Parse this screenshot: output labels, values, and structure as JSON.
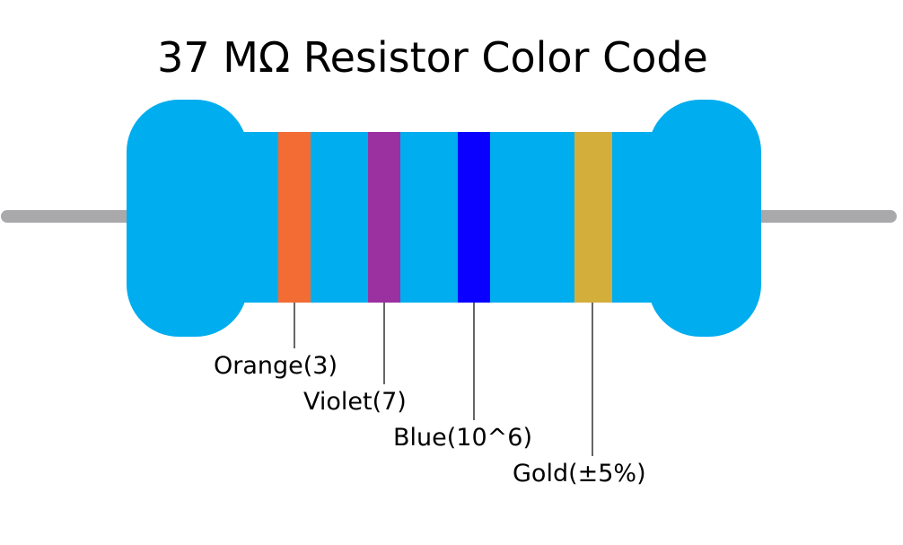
{
  "title": "37 MΩ Resistor Color Code",
  "colors": {
    "background": "#ffffff",
    "body": "#00adef",
    "lead": "#a9a9ab",
    "leader_line": "#000000",
    "text": "#000000"
  },
  "bands": [
    {
      "color_name": "orange",
      "color": "#f26c33",
      "label": "Orange(3)"
    },
    {
      "color_name": "violet",
      "color": "#9b30a0",
      "label": "Violet(7)"
    },
    {
      "color_name": "blue",
      "color": "#0a00ff",
      "label": "Blue(10^6)"
    },
    {
      "color_name": "gold",
      "color": "#d4ae3a",
      "label": "Gold(±5%)"
    }
  ]
}
